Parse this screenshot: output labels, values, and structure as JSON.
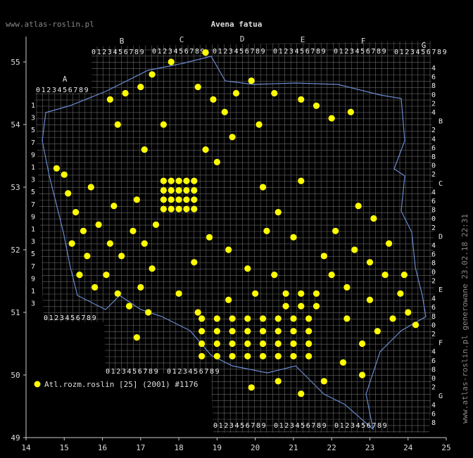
{
  "header": {
    "site": "www.atlas-roslin.pl",
    "title": "Avena fatua"
  },
  "footer": "www.atlas-roslin.pl generowane 23.02.18 22:31",
  "legend": "Atl.rozm.roslin [25] (2001) #1176",
  "axes": {
    "xlim": [
      14,
      25
    ],
    "ylim": [
      49,
      55
    ],
    "xticks": [
      14,
      15,
      16,
      17,
      18,
      19,
      20,
      21,
      22,
      23,
      24,
      25
    ],
    "yticks": [
      49,
      50,
      51,
      52,
      53,
      54,
      55
    ]
  },
  "grid_letters": [
    "A",
    "B",
    "C",
    "D",
    "E",
    "F",
    "G"
  ],
  "grid_digits": "0123456789",
  "left_labels": [
    "1",
    "3",
    "5",
    "7",
    "9",
    "1",
    "3",
    "5",
    "7",
    "9",
    "1",
    "3",
    "5",
    "7",
    "9",
    "1",
    "3"
  ],
  "right_labels": [
    "4",
    "6",
    "8",
    "0",
    "2",
    "4",
    "B",
    "2",
    "4",
    "6",
    "8",
    "0",
    "2",
    "C",
    "4",
    "6",
    "8",
    "0",
    "2",
    "D",
    "4",
    "6",
    "8",
    "0",
    "2",
    "E",
    "4",
    "6",
    "8",
    "0",
    "2",
    "F",
    "4",
    "6",
    "8",
    "0",
    "2",
    "G",
    "4",
    "6",
    "8"
  ],
  "points": [
    [
      17.6,
      52.65
    ],
    [
      17.8,
      52.65
    ],
    [
      18.0,
      52.65
    ],
    [
      18.2,
      52.65
    ],
    [
      18.4,
      52.65
    ],
    [
      17.6,
      52.8
    ],
    [
      17.8,
      52.8
    ],
    [
      18.0,
      52.8
    ],
    [
      18.2,
      52.8
    ],
    [
      18.4,
      52.8
    ],
    [
      17.6,
      52.95
    ],
    [
      17.8,
      52.95
    ],
    [
      18.0,
      52.95
    ],
    [
      18.2,
      52.95
    ],
    [
      18.4,
      52.95
    ],
    [
      17.6,
      53.1
    ],
    [
      17.8,
      53.1
    ],
    [
      18.0,
      53.1
    ],
    [
      18.2,
      53.1
    ],
    [
      18.4,
      53.1
    ],
    [
      18.6,
      50.3
    ],
    [
      19.0,
      50.3
    ],
    [
      19.4,
      50.3
    ],
    [
      19.8,
      50.3
    ],
    [
      20.2,
      50.3
    ],
    [
      20.6,
      50.3
    ],
    [
      21.0,
      50.3
    ],
    [
      21.4,
      50.3
    ],
    [
      18.6,
      50.5
    ],
    [
      19.0,
      50.5
    ],
    [
      19.4,
      50.5
    ],
    [
      19.8,
      50.5
    ],
    [
      20.2,
      50.5
    ],
    [
      20.6,
      50.5
    ],
    [
      21.0,
      50.5
    ],
    [
      21.4,
      50.5
    ],
    [
      18.6,
      50.7
    ],
    [
      19.0,
      50.7
    ],
    [
      19.4,
      50.7
    ],
    [
      19.8,
      50.7
    ],
    [
      20.2,
      50.7
    ],
    [
      20.6,
      50.7
    ],
    [
      21.0,
      50.7
    ],
    [
      21.4,
      50.7
    ],
    [
      18.6,
      50.9
    ],
    [
      19.0,
      50.9
    ],
    [
      19.4,
      50.9
    ],
    [
      19.8,
      50.9
    ],
    [
      20.2,
      50.9
    ],
    [
      20.6,
      50.9
    ],
    [
      21.0,
      50.9
    ],
    [
      21.4,
      50.9
    ],
    [
      20.8,
      51.1
    ],
    [
      21.2,
      51.1
    ],
    [
      21.6,
      51.1
    ],
    [
      20.8,
      51.3
    ],
    [
      21.2,
      51.3
    ],
    [
      21.6,
      51.3
    ],
    [
      15.1,
      52.9
    ],
    [
      15.3,
      52.6
    ],
    [
      15.5,
      52.3
    ],
    [
      15.2,
      52.1
    ],
    [
      15.6,
      51.9
    ],
    [
      15.9,
      52.4
    ],
    [
      16.2,
      52.1
    ],
    [
      16.5,
      51.9
    ],
    [
      16.8,
      52.3
    ],
    [
      17.1,
      52.1
    ],
    [
      15.4,
      51.6
    ],
    [
      15.8,
      51.4
    ],
    [
      16.1,
      51.6
    ],
    [
      16.4,
      51.3
    ],
    [
      16.7,
      51.1
    ],
    [
      17.0,
      51.4
    ],
    [
      17.3,
      51.7
    ],
    [
      15.0,
      53.2
    ],
    [
      14.8,
      53.3
    ],
    [
      15.7,
      53.0
    ],
    [
      16.3,
      52.7
    ],
    [
      16.9,
      52.8
    ],
    [
      17.4,
      52.4
    ],
    [
      17.2,
      51.0
    ],
    [
      16.9,
      50.6
    ],
    [
      16.2,
      54.4
    ],
    [
      16.6,
      54.5
    ],
    [
      17.0,
      54.6
    ],
    [
      17.3,
      54.8
    ],
    [
      17.8,
      55.0
    ],
    [
      18.7,
      55.15
    ],
    [
      18.5,
      54.6
    ],
    [
      18.9,
      54.4
    ],
    [
      19.2,
      54.2
    ],
    [
      19.5,
      54.5
    ],
    [
      19.9,
      54.7
    ],
    [
      20.5,
      54.5
    ],
    [
      21.2,
      54.4
    ],
    [
      21.6,
      54.3
    ],
    [
      22.0,
      54.1
    ],
    [
      22.5,
      54.2
    ],
    [
      20.1,
      54.0
    ],
    [
      19.4,
      53.8
    ],
    [
      18.7,
      53.6
    ],
    [
      19.0,
      53.4
    ],
    [
      17.6,
      54.0
    ],
    [
      17.1,
      53.6
    ],
    [
      16.4,
      54.0
    ],
    [
      21.2,
      53.1
    ],
    [
      20.2,
      53.0
    ],
    [
      22.1,
      52.3
    ],
    [
      22.6,
      52.0
    ],
    [
      23.0,
      51.8
    ],
    [
      23.4,
      51.6
    ],
    [
      23.8,
      51.3
    ],
    [
      24.0,
      51.0
    ],
    [
      23.6,
      50.9
    ],
    [
      23.2,
      50.7
    ],
    [
      22.8,
      50.5
    ],
    [
      22.4,
      50.9
    ],
    [
      22.0,
      51.6
    ],
    [
      21.8,
      51.9
    ],
    [
      22.4,
      51.4
    ],
    [
      23.0,
      51.2
    ],
    [
      23.5,
      52.1
    ],
    [
      23.1,
      52.5
    ],
    [
      22.7,
      52.7
    ],
    [
      23.9,
      51.6
    ],
    [
      24.2,
      50.8
    ],
    [
      22.3,
      50.2
    ],
    [
      22.8,
      50.0
    ],
    [
      21.8,
      49.9
    ],
    [
      21.2,
      49.7
    ],
    [
      20.6,
      49.9
    ],
    [
      19.9,
      49.8
    ],
    [
      18.4,
      51.8
    ],
    [
      18.8,
      52.2
    ],
    [
      19.3,
      52.0
    ],
    [
      19.8,
      51.7
    ],
    [
      20.3,
      52.3
    ],
    [
      20.6,
      52.6
    ],
    [
      21.0,
      52.2
    ],
    [
      18.0,
      51.3
    ],
    [
      18.5,
      51.0
    ],
    [
      19.3,
      51.2
    ],
    [
      20.0,
      51.3
    ],
    [
      20.5,
      51.6
    ]
  ]
}
